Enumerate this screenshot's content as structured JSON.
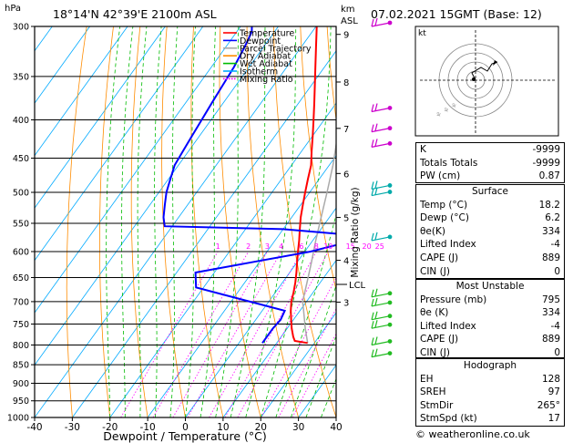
{
  "header": {
    "location": "18°14'N  42°39'E  2100m  ASL",
    "datetime": "07.02.2021  15GMT  (Base: 12)"
  },
  "axes": {
    "y_unit": "hPa",
    "y_right_unit_top": "km",
    "y_right_unit_bottom": "ASL",
    "x_title": "Dewpoint / Temperature (°C)",
    "mixing_axis_title": "Mixing Ratio (g/kg)",
    "lcl_label": "LCL",
    "pressure_ticks": [
      "300",
      "350",
      "400",
      "450",
      "500",
      "550",
      "600",
      "650",
      "700",
      "750",
      "800",
      "850",
      "900",
      "950",
      "1000"
    ],
    "temp_ticks": [
      "-40",
      "-30",
      "-20",
      "-10",
      "0",
      "10",
      "20",
      "30",
      "40"
    ],
    "km_ticks": [
      "9",
      "8",
      "7",
      "6",
      "5",
      "4",
      "3"
    ],
    "mixing_ticks": [
      "1",
      "2",
      "3",
      "4",
      "6",
      "8",
      "10",
      "15",
      "20",
      "25"
    ]
  },
  "legend": [
    {
      "label": "Temperature",
      "color": "#ff0000"
    },
    {
      "label": "Dewpoint",
      "color": "#0000ff"
    },
    {
      "label": "Parcel Trajectory",
      "color": "#aaaaaa"
    },
    {
      "label": "Dry Adiabat",
      "color": "#ff8c00"
    },
    {
      "label": "Wet Adiabat",
      "color": "#00bb00"
    },
    {
      "label": "Isotherm",
      "color": "#00aaff"
    },
    {
      "label": "Mixing Ratio",
      "color": "#ff00ff"
    }
  ],
  "hodograph": {
    "unit_label": "kt"
  },
  "indices": {
    "rows": [
      {
        "label": "K",
        "value": "-9999"
      },
      {
        "label": "Totals Totals",
        "value": "-9999"
      },
      {
        "label": "PW (cm)",
        "value": "0.87"
      }
    ]
  },
  "surface": {
    "title": "Surface",
    "rows": [
      {
        "label": "Temp (°C)",
        "value": "18.2"
      },
      {
        "label": "Dewp (°C)",
        "value": "6.2"
      },
      {
        "label": "θe(K)",
        "value": "334"
      },
      {
        "label": "Lifted Index",
        "value": "-4"
      },
      {
        "label": "CAPE (J)",
        "value": "889"
      },
      {
        "label": "CIN (J)",
        "value": "0"
      }
    ]
  },
  "most_unstable": {
    "title": "Most Unstable",
    "rows": [
      {
        "label": "Pressure (mb)",
        "value": "795"
      },
      {
        "label": "θe (K)",
        "value": "334"
      },
      {
        "label": "Lifted Index",
        "value": "-4"
      },
      {
        "label": "CAPE (J)",
        "value": "889"
      },
      {
        "label": "CIN (J)",
        "value": "0"
      }
    ]
  },
  "hodograph_table": {
    "title": "Hodograph",
    "rows": [
      {
        "label": "EH",
        "value": "128"
      },
      {
        "label": "SREH",
        "value": "97"
      },
      {
        "label": "StmDir",
        "value": "265°"
      },
      {
        "label": "StmSpd (kt)",
        "value": "17"
      }
    ]
  },
  "footer": {
    "copyright": "© weatheronline.co.uk"
  },
  "chart_data": {
    "type": "line",
    "skew_t": true,
    "y_axis_scale": "log",
    "ylim": [
      1000,
      300
    ],
    "xlim": [
      -40,
      40
    ],
    "series": [
      {
        "name": "Temperature",
        "color": "#ff0000",
        "pressure": [
          795,
          790,
          780,
          760,
          740,
          720,
          700,
          680,
          660,
          640,
          620,
          600,
          580,
          560,
          540,
          520,
          500,
          480,
          460,
          440,
          420,
          400,
          380,
          360,
          340,
          320,
          300
        ],
        "temp": [
          18.2,
          14.4,
          13.2,
          11.2,
          9.4,
          7.6,
          6.0,
          4.8,
          3.4,
          1.8,
          0.0,
          -1.8,
          -3.6,
          -5.6,
          -7.6,
          -9.4,
          -11.2,
          -13.0,
          -14.8,
          -17.4,
          -20.0,
          -22.8,
          -25.8,
          -29.0,
          -32.4,
          -36.0,
          -39.8
        ]
      },
      {
        "name": "Dewpoint",
        "color": "#0000ff",
        "pressure": [
          795,
          760,
          740,
          720,
          700,
          670,
          640,
          620,
          600,
          580,
          572,
          560,
          555,
          540,
          520,
          500,
          480,
          460,
          440,
          420,
          400,
          380,
          360,
          340,
          320,
          305,
          300
        ],
        "temp": [
          6.2,
          6.2,
          6.6,
          6.0,
          -5.0,
          -22.0,
          -25.0,
          -12.0,
          1.5,
          11.0,
          12.8,
          -10.0,
          -42.0,
          -44.0,
          -46.0,
          -48.0,
          -49.5,
          -51.0,
          -51.5,
          -52.0,
          -52.5,
          -53.0,
          -53.5,
          -54.0,
          -55.0,
          -56.0,
          -57.0
        ]
      },
      {
        "name": "Parcel Trajectory",
        "color": "#aaaaaa",
        "pressure": [
          795,
          760,
          720,
          700,
          660,
          620,
          580,
          540,
          500,
          460,
          420,
          380,
          340,
          300
        ],
        "temp": [
          18.2,
          14.8,
          11.0,
          9.0,
          6.5,
          3.8,
          0.8,
          -2.2,
          -5.4,
          -9.0,
          -13.4,
          -18.8,
          -25.0,
          -32.4
        ]
      }
    ],
    "wind_barbs": [
      {
        "pressure": 300
      },
      {
        "pressure": 390
      },
      {
        "pressure": 415
      },
      {
        "pressure": 435
      },
      {
        "pressure": 495
      },
      {
        "pressure": 505
      },
      {
        "pressure": 580
      },
      {
        "pressure": 690
      },
      {
        "pressure": 710
      },
      {
        "pressure": 740
      },
      {
        "pressure": 760
      },
      {
        "pressure": 800
      },
      {
        "pressure": 830
      }
    ]
  }
}
